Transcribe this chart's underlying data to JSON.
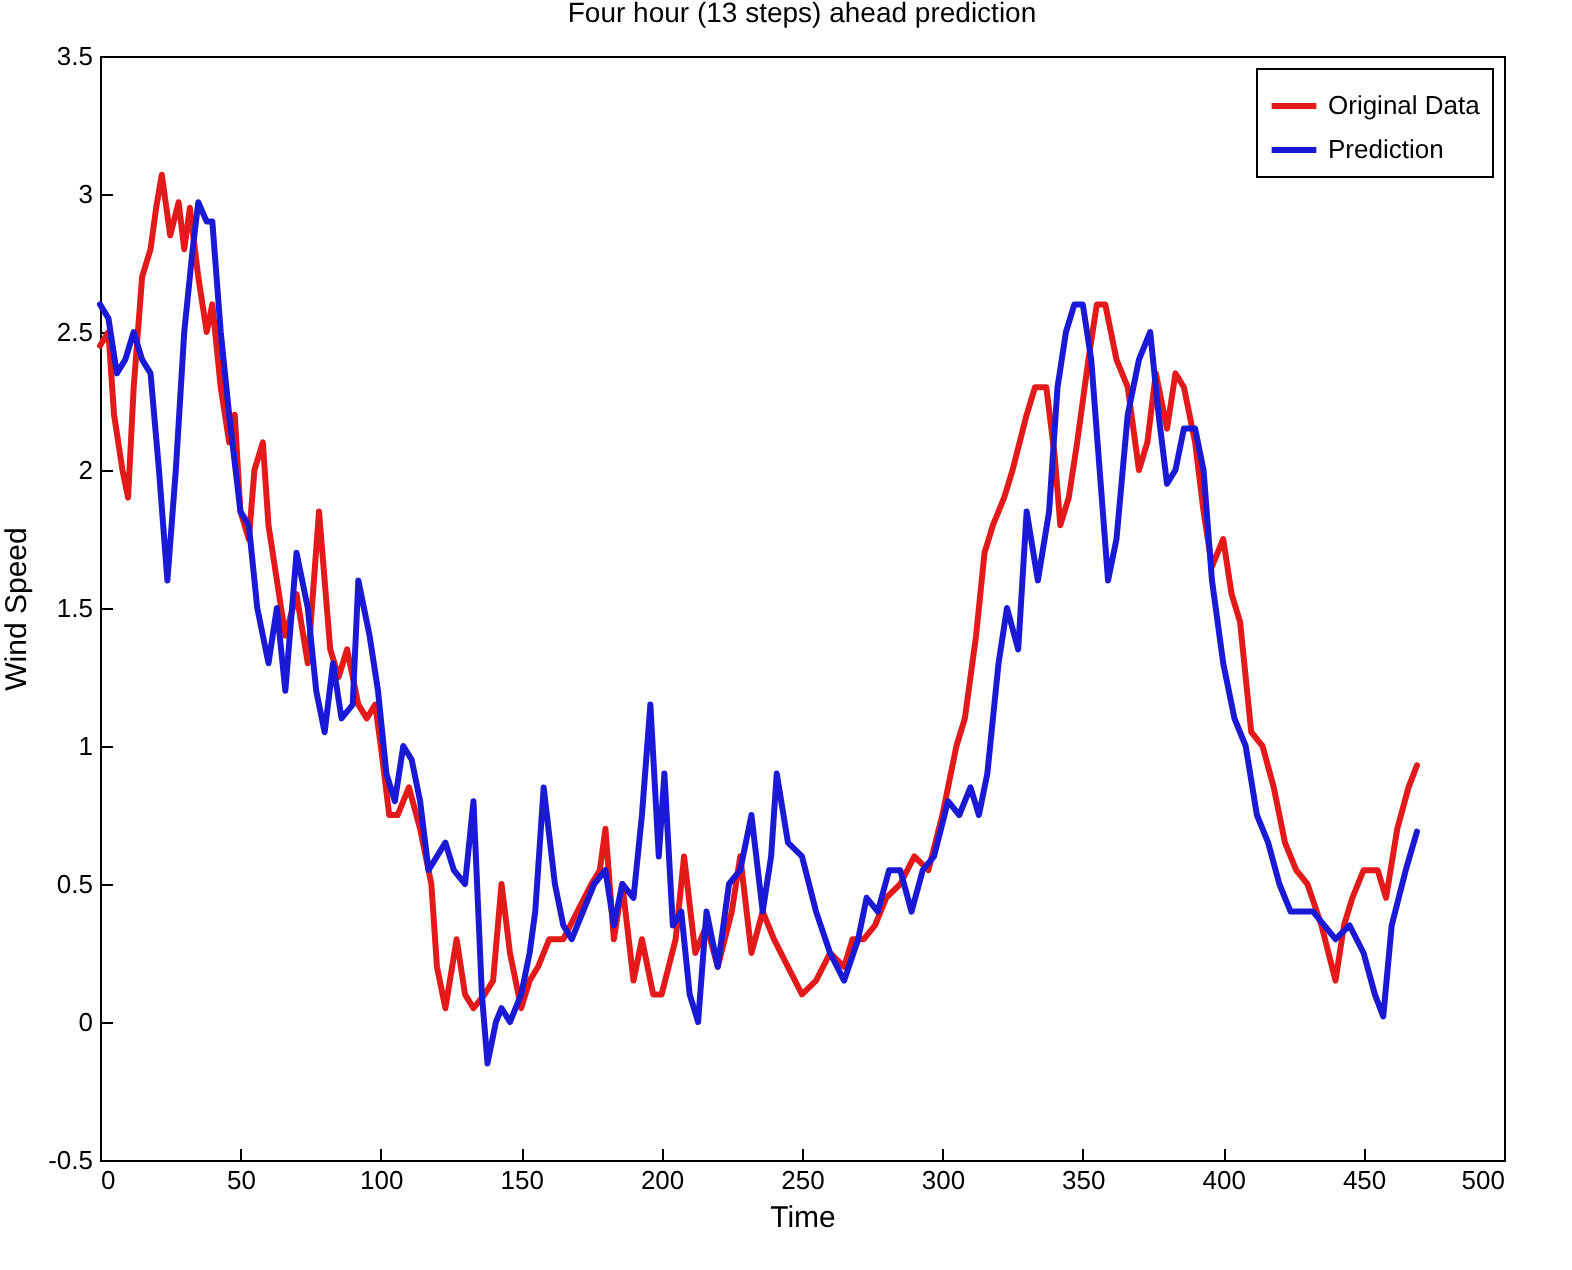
{
  "chart_data": {
    "type": "line",
    "title": "Four hour (13 steps) ahead prediction",
    "xlabel": "Time",
    "ylabel": "Wind Speed",
    "xlim": [
      0,
      500
    ],
    "xticks": [
      0,
      50,
      100,
      150,
      200,
      250,
      300,
      350,
      400,
      450,
      500
    ],
    "ylim": [
      -0.5,
      3.5
    ],
    "yticks": [
      -0.5,
      0,
      0.5,
      1,
      1.5,
      2,
      2.5,
      3,
      3.5
    ],
    "grid": false,
    "legend": "top right",
    "line_style": "solid",
    "marker": "none",
    "series": [
      {
        "name": "Original Data",
        "color": "#e41a1a",
        "x": [
          0,
          3,
          5,
          8,
          10,
          12,
          15,
          18,
          20,
          22,
          25,
          28,
          30,
          32,
          35,
          38,
          40,
          43,
          46,
          48,
          50,
          53,
          55,
          58,
          60,
          63,
          66,
          70,
          74,
          78,
          82,
          85,
          88,
          92,
          95,
          98,
          100,
          103,
          106,
          110,
          114,
          118,
          120,
          123,
          127,
          130,
          133,
          137,
          140,
          143,
          146,
          150,
          153,
          156,
          160,
          165,
          170,
          175,
          178,
          180,
          183,
          186,
          190,
          193,
          197,
          200,
          205,
          208,
          212,
          216,
          220,
          225,
          228,
          232,
          236,
          240,
          245,
          250,
          255,
          260,
          265,
          268,
          272,
          276,
          280,
          285,
          290,
          295,
          300,
          305,
          308,
          312,
          315,
          318,
          322,
          325,
          330,
          333,
          337,
          340,
          342,
          345,
          348,
          352,
          355,
          358,
          362,
          366,
          370,
          373,
          376,
          380,
          383,
          386,
          390,
          393,
          396,
          400,
          403,
          406,
          410,
          414,
          418,
          422,
          426,
          430,
          435,
          440,
          443,
          446,
          450,
          455,
          458,
          462,
          466,
          469
        ],
        "values": [
          2.45,
          2.5,
          2.2,
          2.0,
          1.9,
          2.3,
          2.7,
          2.8,
          2.95,
          3.07,
          2.85,
          2.97,
          2.8,
          2.95,
          2.7,
          2.5,
          2.6,
          2.3,
          2.1,
          2.2,
          1.85,
          1.75,
          2.0,
          2.1,
          1.8,
          1.6,
          1.4,
          1.55,
          1.3,
          1.85,
          1.35,
          1.25,
          1.35,
          1.15,
          1.1,
          1.15,
          1.0,
          0.75,
          0.75,
          0.85,
          0.7,
          0.5,
          0.2,
          0.05,
          0.3,
          0.1,
          0.05,
          0.1,
          0.15,
          0.5,
          0.25,
          0.05,
          0.15,
          0.2,
          0.3,
          0.3,
          0.4,
          0.5,
          0.55,
          0.7,
          0.3,
          0.5,
          0.15,
          0.3,
          0.1,
          0.1,
          0.3,
          0.6,
          0.25,
          0.35,
          0.2,
          0.4,
          0.6,
          0.25,
          0.4,
          0.3,
          0.2,
          0.1,
          0.15,
          0.25,
          0.2,
          0.3,
          0.3,
          0.35,
          0.45,
          0.5,
          0.6,
          0.55,
          0.75,
          1.0,
          1.1,
          1.4,
          1.7,
          1.8,
          1.9,
          2.0,
          2.2,
          2.3,
          2.3,
          2.05,
          1.8,
          1.9,
          2.1,
          2.4,
          2.6,
          2.6,
          2.4,
          2.3,
          2.0,
          2.1,
          2.35,
          2.15,
          2.35,
          2.3,
          2.1,
          1.85,
          1.65,
          1.75,
          1.55,
          1.45,
          1.05,
          1.0,
          0.85,
          0.65,
          0.55,
          0.5,
          0.35,
          0.15,
          0.35,
          0.45,
          0.55,
          0.55,
          0.45,
          0.7,
          0.85,
          0.93
        ]
      },
      {
        "name": "Prediction",
        "color": "#1a1ad6",
        "x": [
          0,
          3,
          6,
          9,
          12,
          15,
          18,
          21,
          24,
          27,
          30,
          33,
          35,
          38,
          40,
          43,
          46,
          50,
          53,
          56,
          60,
          63,
          66,
          70,
          74,
          77,
          80,
          83,
          86,
          90,
          92,
          96,
          99,
          102,
          105,
          108,
          111,
          114,
          117,
          120,
          123,
          126,
          130,
          133,
          136,
          138,
          141,
          143,
          146,
          150,
          153,
          155,
          158,
          162,
          165,
          168,
          172,
          176,
          180,
          183,
          186,
          190,
          193,
          196,
          199,
          201,
          204,
          207,
          210,
          213,
          216,
          220,
          224,
          228,
          232,
          236,
          239,
          241,
          245,
          250,
          255,
          260,
          265,
          270,
          273,
          277,
          281,
          285,
          289,
          293,
          297,
          302,
          306,
          310,
          313,
          316,
          320,
          323,
          327,
          330,
          334,
          338,
          341,
          344,
          347,
          350,
          353,
          356,
          359,
          362,
          366,
          370,
          374,
          377,
          380,
          383,
          386,
          390,
          393,
          396,
          400,
          404,
          408,
          412,
          416,
          420,
          424,
          428,
          432,
          436,
          440,
          445,
          450,
          454,
          457,
          460,
          465,
          469
        ],
        "values": [
          2.6,
          2.55,
          2.35,
          2.4,
          2.5,
          2.4,
          2.35,
          2.0,
          1.6,
          2.0,
          2.5,
          2.8,
          2.97,
          2.9,
          2.9,
          2.5,
          2.2,
          1.85,
          1.8,
          1.5,
          1.3,
          1.5,
          1.2,
          1.7,
          1.5,
          1.2,
          1.05,
          1.3,
          1.1,
          1.15,
          1.6,
          1.4,
          1.2,
          0.9,
          0.8,
          1.0,
          0.95,
          0.8,
          0.55,
          0.6,
          0.65,
          0.55,
          0.5,
          0.8,
          0.1,
          -0.15,
          0.0,
          0.05,
          0.0,
          0.1,
          0.25,
          0.4,
          0.85,
          0.5,
          0.35,
          0.3,
          0.4,
          0.5,
          0.55,
          0.35,
          0.5,
          0.45,
          0.75,
          1.15,
          0.6,
          0.9,
          0.35,
          0.4,
          0.1,
          0.0,
          0.4,
          0.2,
          0.5,
          0.55,
          0.75,
          0.4,
          0.6,
          0.9,
          0.65,
          0.6,
          0.4,
          0.25,
          0.15,
          0.3,
          0.45,
          0.4,
          0.55,
          0.55,
          0.4,
          0.55,
          0.6,
          0.8,
          0.75,
          0.85,
          0.75,
          0.9,
          1.3,
          1.5,
          1.35,
          1.85,
          1.6,
          1.85,
          2.3,
          2.5,
          2.6,
          2.6,
          2.4,
          2.0,
          1.6,
          1.75,
          2.2,
          2.4,
          2.5,
          2.2,
          1.95,
          2.0,
          2.15,
          2.15,
          2.0,
          1.6,
          1.3,
          1.1,
          1.0,
          0.75,
          0.65,
          0.5,
          0.4,
          0.4,
          0.4,
          0.35,
          0.3,
          0.35,
          0.25,
          0.1,
          0.02,
          0.35,
          0.55,
          0.69
        ]
      }
    ]
  }
}
